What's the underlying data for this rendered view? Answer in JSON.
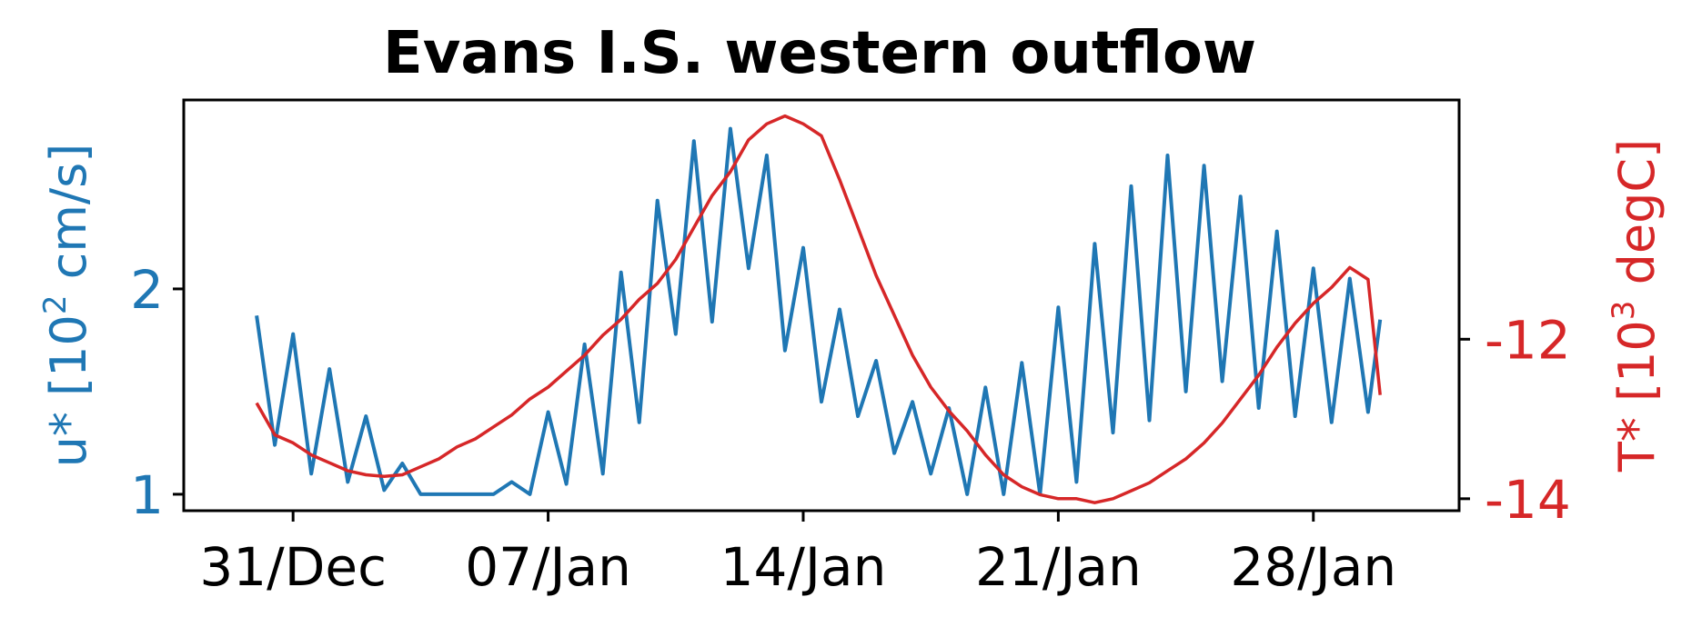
{
  "chart_data": {
    "type": "line",
    "title": "Evans I.S. western outflow",
    "x_axis": {
      "type": "date",
      "range": [
        "2023-12-28",
        "2024-02-01"
      ],
      "ticks": [
        {
          "date": "2023-12-31",
          "label": "31/Dec"
        },
        {
          "date": "2024-01-07",
          "label": "07/Jan"
        },
        {
          "date": "2024-01-14",
          "label": "14/Jan"
        },
        {
          "date": "2024-01-21",
          "label": "21/Jan"
        },
        {
          "date": "2024-01-28",
          "label": "28/Jan"
        }
      ]
    },
    "left_axis": {
      "label_main": "u* [10",
      "label_sup": "2",
      "label_tail": " cm/s]",
      "color": "#1f77b4",
      "range": [
        0.92,
        2.92
      ],
      "ticks": [
        {
          "value": 1,
          "label": "1"
        },
        {
          "value": 2,
          "label": "2"
        }
      ]
    },
    "right_axis": {
      "label_main": "T* [10",
      "label_sup": "3",
      "label_tail": " degC]",
      "color": "#d62728",
      "range": [
        -14.15,
        -9.0
      ],
      "ticks": [
        {
          "value": -12,
          "label": "-12"
        },
        {
          "value": -14,
          "label": "-14"
        }
      ]
    },
    "grid": false,
    "series": [
      {
        "axis": "left",
        "color": "#1f77b4",
        "x": [
          "2023-12-30",
          "2023-12-30T12:00",
          "2023-12-31",
          "2023-12-31T12:00",
          "2024-01-01",
          "2024-01-01T12:00",
          "2024-01-02",
          "2024-01-02T12:00",
          "2024-01-03",
          "2024-01-03T12:00",
          "2024-01-04",
          "2024-01-04T12:00",
          "2024-01-05",
          "2024-01-05T12:00",
          "2024-01-06",
          "2024-01-06T12:00",
          "2024-01-07",
          "2024-01-07T12:00",
          "2024-01-08",
          "2024-01-08T12:00",
          "2024-01-09",
          "2024-01-09T12:00",
          "2024-01-10",
          "2024-01-10T12:00",
          "2024-01-11",
          "2024-01-11T12:00",
          "2024-01-12",
          "2024-01-12T12:00",
          "2024-01-13",
          "2024-01-13T12:00",
          "2024-01-14",
          "2024-01-14T12:00",
          "2024-01-15",
          "2024-01-15T12:00",
          "2024-01-16",
          "2024-01-16T12:00",
          "2024-01-17",
          "2024-01-17T12:00",
          "2024-01-18",
          "2024-01-18T12:00",
          "2024-01-19",
          "2024-01-19T12:00",
          "2024-01-20",
          "2024-01-20T12:00",
          "2024-01-21",
          "2024-01-21T12:00",
          "2024-01-22",
          "2024-01-22T12:00",
          "2024-01-23",
          "2024-01-23T12:00",
          "2024-01-24",
          "2024-01-24T12:00",
          "2024-01-25",
          "2024-01-25T12:00",
          "2024-01-26",
          "2024-01-26T12:00",
          "2024-01-27",
          "2024-01-27T12:00",
          "2024-01-28",
          "2024-01-28T12:00",
          "2024-01-29",
          "2024-01-29T12:00",
          "2024-01-29T20:00"
        ],
        "values": [
          1.87,
          1.24,
          1.78,
          1.1,
          1.61,
          1.06,
          1.38,
          1.02,
          1.15,
          1.0,
          1.0,
          1.0,
          1.0,
          1.0,
          1.06,
          1.0,
          1.4,
          1.05,
          1.73,
          1.1,
          2.08,
          1.35,
          2.43,
          1.78,
          2.72,
          1.84,
          2.78,
          2.1,
          2.65,
          1.7,
          2.2,
          1.45,
          1.9,
          1.38,
          1.65,
          1.2,
          1.45,
          1.1,
          1.42,
          1.0,
          1.52,
          1.0,
          1.64,
          1.0,
          1.91,
          1.06,
          2.22,
          1.3,
          2.5,
          1.36,
          2.65,
          1.5,
          2.6,
          1.55,
          2.45,
          1.42,
          2.28,
          1.38,
          2.1,
          1.35,
          2.05,
          1.4,
          1.85
        ]
      },
      {
        "axis": "right",
        "color": "#d62728",
        "x": [
          "2023-12-30",
          "2023-12-30T12:00",
          "2023-12-31",
          "2023-12-31T12:00",
          "2024-01-01",
          "2024-01-01T12:00",
          "2024-01-02",
          "2024-01-02T12:00",
          "2024-01-03",
          "2024-01-03T12:00",
          "2024-01-04",
          "2024-01-04T12:00",
          "2024-01-05",
          "2024-01-05T12:00",
          "2024-01-06",
          "2024-01-06T12:00",
          "2024-01-07",
          "2024-01-07T12:00",
          "2024-01-08",
          "2024-01-08T12:00",
          "2024-01-09",
          "2024-01-09T12:00",
          "2024-01-10",
          "2024-01-10T12:00",
          "2024-01-11",
          "2024-01-11T12:00",
          "2024-01-12",
          "2024-01-12T12:00",
          "2024-01-13",
          "2024-01-13T12:00",
          "2024-01-14",
          "2024-01-14T12:00",
          "2024-01-15",
          "2024-01-15T12:00",
          "2024-01-16",
          "2024-01-16T12:00",
          "2024-01-17",
          "2024-01-17T12:00",
          "2024-01-18",
          "2024-01-18T12:00",
          "2024-01-19",
          "2024-01-19T12:00",
          "2024-01-20",
          "2024-01-20T12:00",
          "2024-01-21",
          "2024-01-21T12:00",
          "2024-01-22",
          "2024-01-22T12:00",
          "2024-01-23",
          "2024-01-23T12:00",
          "2024-01-24",
          "2024-01-24T12:00",
          "2024-01-25",
          "2024-01-25T12:00",
          "2024-01-26",
          "2024-01-26T12:00",
          "2024-01-27",
          "2024-01-27T12:00",
          "2024-01-28",
          "2024-01-28T12:00",
          "2024-01-29",
          "2024-01-29T12:00",
          "2024-01-29T20:00"
        ],
        "values": [
          -12.8,
          -13.2,
          -13.3,
          -13.45,
          -13.55,
          -13.65,
          -13.7,
          -13.72,
          -13.7,
          -13.6,
          -13.5,
          -13.35,
          -13.25,
          -13.1,
          -12.95,
          -12.75,
          -12.6,
          -12.4,
          -12.2,
          -11.95,
          -11.75,
          -11.5,
          -11.3,
          -11.0,
          -10.6,
          -10.2,
          -9.9,
          -9.5,
          -9.3,
          -9.2,
          -9.3,
          -9.45,
          -10.0,
          -10.6,
          -11.2,
          -11.7,
          -12.2,
          -12.6,
          -12.9,
          -13.15,
          -13.45,
          -13.7,
          -13.85,
          -13.95,
          -14.0,
          -14.0,
          -14.05,
          -14.0,
          -13.9,
          -13.8,
          -13.65,
          -13.5,
          -13.3,
          -13.05,
          -12.75,
          -12.45,
          -12.1,
          -11.8,
          -11.55,
          -11.35,
          -11.1,
          -11.25,
          -12.7
        ]
      }
    ]
  }
}
